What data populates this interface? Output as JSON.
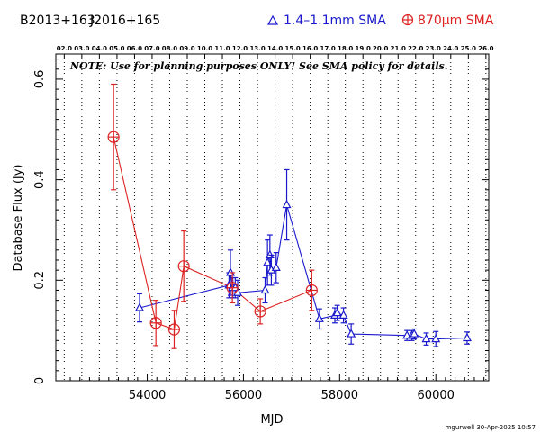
{
  "header": {
    "source1": "B2013+163",
    "source2": "J2016+165",
    "legend_blue": "1.4–1.1mm SMA",
    "legend_red_prefix": "870",
    "legend_red_mu": "μ",
    "legend_red_suffix": "m SMA"
  },
  "note": "NOTE: Use for planning purposes ONLY!  See SMA policy for details.",
  "credit": "mgurwell 30-Apr-2025 10:57",
  "colors": {
    "blue": "#1a1acc",
    "red": "#dd2222"
  },
  "chart_data": {
    "type": "scatter",
    "xlabel": "MJD",
    "ylabel": "Database Flux (Jy)",
    "xlim": [
      52100,
      61100
    ],
    "ylim": [
      0,
      0.65
    ],
    "x_ticks": [
      54000,
      56000,
      58000,
      60000
    ],
    "x_tick_labels": [
      "54000",
      "56000",
      "58000",
      "60000"
    ],
    "y_ticks": [
      0,
      0.2,
      0.4,
      0.6
    ],
    "y_tick_labels": [
      "0",
      "0.2",
      "0.4",
      "0.6"
    ],
    "top_axis_ticks": [
      52275,
      52640,
      53005,
      53371,
      53736,
      54101,
      54466,
      54832,
      55197,
      55562,
      55927,
      56293,
      56658,
      57023,
      57388,
      57754,
      58119,
      58484,
      58849,
      59215,
      59580,
      59945,
      60310,
      60676,
      61041
    ],
    "top_axis_labels": [
      "02.0",
      "03.0",
      "04.0",
      "05.0",
      "06.0",
      "07.0",
      "08.0",
      "09.0",
      "10.0",
      "11.0",
      "12.0",
      "13.0",
      "14.0",
      "15.0",
      "16.0",
      "17.0",
      "18.0",
      "19.0",
      "20.0",
      "21.0",
      "22.0",
      "23.0",
      "24.0",
      "25.0",
      "26.0"
    ],
    "series": [
      {
        "name": "1.4–1.1mm SMA",
        "marker": "triangle",
        "color": "#1a1acc",
        "points": [
          {
            "x": 53840,
            "y": 0.145,
            "err": 0.028
          },
          {
            "x": 55700,
            "y": 0.19,
            "err": 0.025
          },
          {
            "x": 55730,
            "y": 0.215,
            "err": 0.045
          },
          {
            "x": 55780,
            "y": 0.185,
            "err": 0.02
          },
          {
            "x": 55830,
            "y": 0.185,
            "err": 0.02
          },
          {
            "x": 55880,
            "y": 0.175,
            "err": 0.025
          },
          {
            "x": 56450,
            "y": 0.18,
            "err": 0.025
          },
          {
            "x": 56500,
            "y": 0.235,
            "err": 0.045
          },
          {
            "x": 56550,
            "y": 0.25,
            "err": 0.04
          },
          {
            "x": 56580,
            "y": 0.22,
            "err": 0.03
          },
          {
            "x": 56680,
            "y": 0.225,
            "err": 0.03
          },
          {
            "x": 56900,
            "y": 0.35,
            "err": 0.07
          },
          {
            "x": 57580,
            "y": 0.123,
            "err": 0.02
          },
          {
            "x": 57900,
            "y": 0.13,
            "err": 0.015
          },
          {
            "x": 57950,
            "y": 0.135,
            "err": 0.015
          },
          {
            "x": 58080,
            "y": 0.13,
            "err": 0.015
          },
          {
            "x": 58240,
            "y": 0.093,
            "err": 0.02
          },
          {
            "x": 59400,
            "y": 0.09,
            "err": 0.01
          },
          {
            "x": 59500,
            "y": 0.09,
            "err": 0.01
          },
          {
            "x": 59550,
            "y": 0.093,
            "err": 0.01
          },
          {
            "x": 59800,
            "y": 0.083,
            "err": 0.012
          },
          {
            "x": 60000,
            "y": 0.083,
            "err": 0.015
          },
          {
            "x": 60650,
            "y": 0.085,
            "err": 0.012
          }
        ]
      },
      {
        "name": "870μm SMA",
        "marker": "circle-plus",
        "color": "#dd2222",
        "points": [
          {
            "x": 53300,
            "y": 0.485,
            "err": 0.105
          },
          {
            "x": 54180,
            "y": 0.115,
            "err": 0.045
          },
          {
            "x": 54560,
            "y": 0.102,
            "err": 0.038
          },
          {
            "x": 54760,
            "y": 0.228,
            "err": 0.07
          },
          {
            "x": 55770,
            "y": 0.185,
            "err": 0.03
          },
          {
            "x": 56350,
            "y": 0.138,
            "err": 0.025
          },
          {
            "x": 57420,
            "y": 0.18,
            "err": 0.04
          }
        ]
      }
    ]
  }
}
